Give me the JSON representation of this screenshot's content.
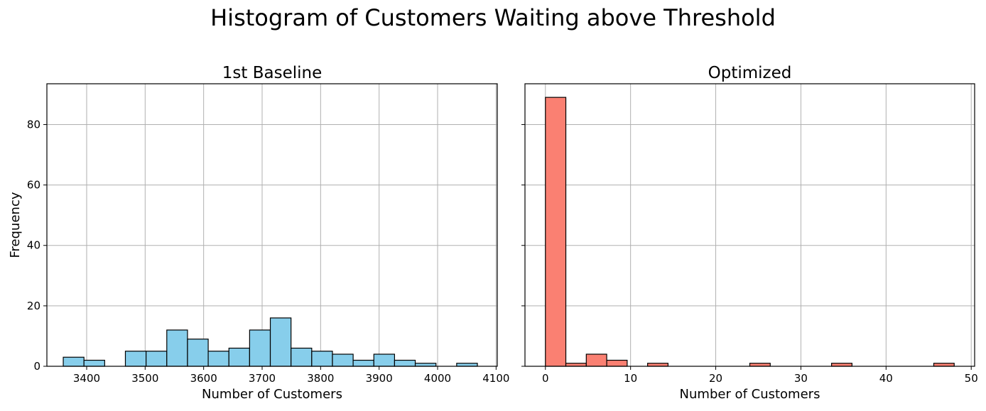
{
  "suptitle": "Histogram of Customers Waiting above Threshold",
  "colors": {
    "baseline": "#87ceeb",
    "optimized": "#fa8072",
    "edge": "#000000",
    "grid": "#b0b0b0"
  },
  "chart_data": [
    {
      "type": "bar",
      "title": "1st Baseline",
      "xlabel": "Number of Customers",
      "ylabel": "Frequency",
      "xlim": [
        3332,
        4102
      ],
      "ylim": [
        0,
        93.5
      ],
      "xticks": [
        3400,
        3500,
        3600,
        3700,
        3800,
        3900,
        4000,
        4100
      ],
      "yticks": [
        0,
        20,
        40,
        60,
        80
      ],
      "grid": true,
      "bin_edges": [
        3360,
        3395.4,
        3430.8,
        3466.2,
        3501.6,
        3537,
        3572.4,
        3607.8,
        3643.2,
        3678.6,
        3714,
        3749.4,
        3784.8,
        3820.2,
        3855.6,
        3891,
        3926.4,
        3961.8,
        3997.2,
        4032.6,
        4068
      ],
      "values": [
        3,
        2,
        0,
        5,
        5,
        12,
        9,
        5,
        6,
        12,
        16,
        6,
        5,
        4,
        2,
        4,
        2,
        1,
        0,
        1
      ]
    },
    {
      "type": "bar",
      "title": "Optimized",
      "xlabel": "Number of Customers",
      "ylabel": "",
      "xlim": [
        -2.4,
        50.4
      ],
      "ylim": [
        0,
        93.5
      ],
      "xticks": [
        0,
        10,
        20,
        30,
        40,
        50
      ],
      "yticks": [
        0,
        20,
        40,
        60,
        80
      ],
      "grid": true,
      "bin_edges": [
        0,
        2.4,
        4.8,
        7.2,
        9.6,
        12,
        14.4,
        16.8,
        19.2,
        21.6,
        24,
        26.4,
        28.8,
        31.2,
        33.6,
        36,
        38.4,
        40.8,
        43.2,
        45.6,
        48
      ],
      "values": [
        89,
        1,
        4,
        2,
        0,
        1,
        0,
        0,
        0,
        0,
        1,
        0,
        0,
        0,
        1,
        0,
        0,
        0,
        0,
        1
      ]
    }
  ]
}
